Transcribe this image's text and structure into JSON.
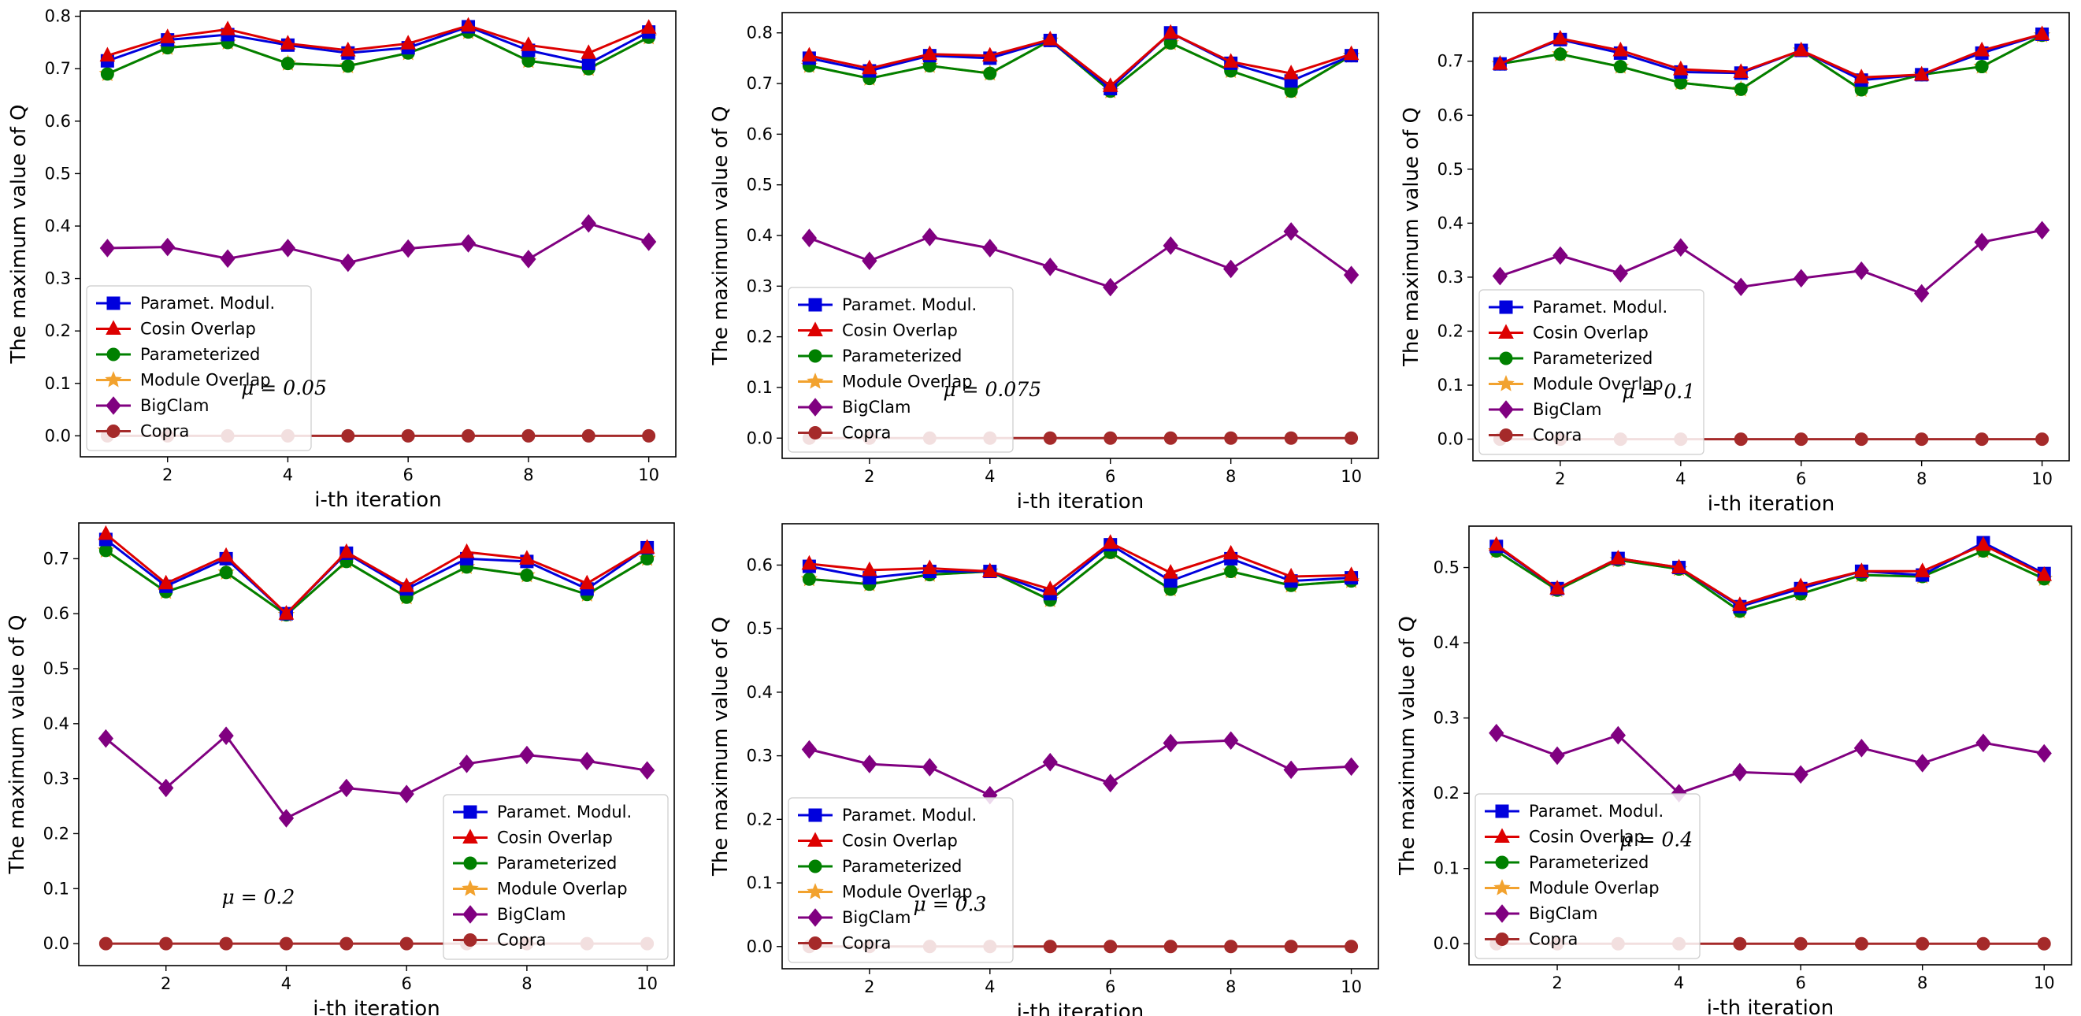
{
  "figure": {
    "legend_labels": [
      "Paramet. Modul.",
      "Cosin Overlap",
      "Parameterized",
      "Module Overlap",
      "BigClam",
      "Copra"
    ],
    "series_style": [
      {
        "name": "Paramet. Modul.",
        "color": "#0000dd",
        "marker": "square"
      },
      {
        "name": "Cosin Overlap",
        "color": "#dd0000",
        "marker": "triangle"
      },
      {
        "name": "Parameterized",
        "color": "#008000",
        "marker": "circle"
      },
      {
        "name": "Module Overlap",
        "color": "#f2a22e",
        "marker": "star"
      },
      {
        "name": "BigClam",
        "color": "#800080",
        "marker": "diamond"
      },
      {
        "name": "Copra",
        "color": "#a52a2a",
        "marker": "circle"
      }
    ]
  },
  "chart_data": [
    {
      "type": "line",
      "annotation": "μ = 0.05",
      "xlabel": "i-th iteration",
      "ylabel": "The maximum value of Q",
      "xlim": [
        0.55,
        10.45
      ],
      "ylim": [
        -0.04,
        0.81
      ],
      "xticks": [
        2,
        4,
        6,
        8,
        10
      ],
      "xtick_labels": [
        "2",
        "4",
        "6",
        "8",
        "10"
      ],
      "yticks": [
        0.0,
        0.1,
        0.2,
        0.3,
        0.4,
        0.5,
        0.6,
        0.7,
        0.8
      ],
      "ytick_labels": [
        "0.0",
        "0.1",
        "0.2",
        "0.3",
        "0.4",
        "0.5",
        "0.6",
        "0.7",
        "0.8"
      ],
      "legend_position": "lower-left",
      "x": [
        1,
        2,
        3,
        4,
        5,
        6,
        7,
        8,
        9,
        10
      ],
      "series": [
        {
          "name": "Paramet. Modul.",
          "values": [
            0.715,
            0.755,
            0.765,
            0.745,
            0.73,
            0.74,
            0.78,
            0.735,
            0.71,
            0.77
          ]
        },
        {
          "name": "Cosin Overlap",
          "values": [
            0.725,
            0.76,
            0.775,
            0.748,
            0.735,
            0.748,
            0.782,
            0.745,
            0.73,
            0.778
          ]
        },
        {
          "name": "Parameterized",
          "values": [
            0.69,
            0.74,
            0.75,
            0.71,
            0.705,
            0.73,
            0.77,
            0.715,
            0.7,
            0.76
          ]
        },
        {
          "name": "Module Overlap",
          "values": [
            0.69,
            0.74,
            0.75,
            0.71,
            0.705,
            0.73,
            0.77,
            0.715,
            0.7,
            0.76
          ]
        },
        {
          "name": "BigClam",
          "values": [
            0.358,
            0.36,
            0.338,
            0.358,
            0.33,
            0.357,
            0.367,
            0.337,
            0.405,
            0.37
          ]
        },
        {
          "name": "Copra",
          "values": [
            0,
            0,
            0,
            0,
            0,
            0,
            0,
            0,
            0,
            0
          ]
        }
      ]
    },
    {
      "type": "line",
      "annotation": "μ = 0.075",
      "xlabel": "i-th iteration",
      "ylabel": "The maximum value of Q",
      "xlim": [
        0.55,
        10.45
      ],
      "ylim": [
        -0.04,
        0.84
      ],
      "xticks": [
        2,
        4,
        6,
        8,
        10
      ],
      "xtick_labels": [
        "2",
        "4",
        "6",
        "8",
        "10"
      ],
      "yticks": [
        0.0,
        0.1,
        0.2,
        0.3,
        0.4,
        0.5,
        0.6,
        0.7,
        0.8
      ],
      "ytick_labels": [
        "0.0",
        "0.1",
        "0.2",
        "0.3",
        "0.4",
        "0.5",
        "0.6",
        "0.7",
        "0.8"
      ],
      "legend_position": "lower-left",
      "x": [
        1,
        2,
        3,
        4,
        5,
        6,
        7,
        8,
        9,
        10
      ],
      "series": [
        {
          "name": "Paramet. Modul.",
          "values": [
            0.75,
            0.725,
            0.755,
            0.75,
            0.785,
            0.69,
            0.8,
            0.74,
            0.705,
            0.755
          ]
        },
        {
          "name": "Cosin Overlap",
          "values": [
            0.755,
            0.73,
            0.758,
            0.755,
            0.787,
            0.695,
            0.8,
            0.743,
            0.72,
            0.758
          ]
        },
        {
          "name": "Parameterized",
          "values": [
            0.735,
            0.71,
            0.735,
            0.72,
            0.785,
            0.685,
            0.78,
            0.725,
            0.685,
            0.755
          ]
        },
        {
          "name": "Module Overlap",
          "values": [
            0.735,
            0.71,
            0.735,
            0.72,
            0.785,
            0.685,
            0.78,
            0.725,
            0.685,
            0.755
          ]
        },
        {
          "name": "BigClam",
          "values": [
            0.395,
            0.35,
            0.397,
            0.375,
            0.338,
            0.298,
            0.38,
            0.334,
            0.408,
            0.322
          ]
        },
        {
          "name": "Copra",
          "values": [
            0,
            0,
            0,
            0,
            0,
            0,
            0,
            0,
            0,
            0
          ]
        }
      ]
    },
    {
      "type": "line",
      "annotation": "μ = 0.1",
      "xlabel": "i-th iteration",
      "ylabel": "The maximum value of Q",
      "xlim": [
        0.55,
        10.45
      ],
      "ylim": [
        -0.04,
        0.79
      ],
      "xticks": [
        2,
        4,
        6,
        8,
        10
      ],
      "xtick_labels": [
        "2",
        "4",
        "6",
        "8",
        "10"
      ],
      "yticks": [
        0.0,
        0.1,
        0.2,
        0.3,
        0.4,
        0.5,
        0.6,
        0.7
      ],
      "ytick_labels": [
        "0.0",
        "0.1",
        "0.2",
        "0.3",
        "0.4",
        "0.5",
        "0.6",
        "0.7"
      ],
      "legend_position": "lower-left",
      "x": [
        1,
        2,
        3,
        4,
        5,
        6,
        7,
        8,
        9,
        10
      ],
      "series": [
        {
          "name": "Paramet. Modul.",
          "values": [
            0.695,
            0.74,
            0.715,
            0.68,
            0.678,
            0.72,
            0.665,
            0.675,
            0.715,
            0.75
          ]
        },
        {
          "name": "Cosin Overlap",
          "values": [
            0.695,
            0.742,
            0.72,
            0.685,
            0.68,
            0.72,
            0.67,
            0.675,
            0.72,
            0.75
          ]
        },
        {
          "name": "Parameterized",
          "values": [
            0.695,
            0.713,
            0.69,
            0.66,
            0.648,
            0.72,
            0.647,
            0.675,
            0.69,
            0.748
          ]
        },
        {
          "name": "Module Overlap",
          "values": [
            0.695,
            0.713,
            0.69,
            0.66,
            0.648,
            0.72,
            0.647,
            0.675,
            0.69,
            0.748
          ]
        },
        {
          "name": "BigClam",
          "values": [
            0.302,
            0.34,
            0.307,
            0.355,
            0.282,
            0.298,
            0.312,
            0.27,
            0.365,
            0.387
          ]
        },
        {
          "name": "Copra",
          "values": [
            0,
            0,
            0,
            0,
            0,
            0,
            0,
            0,
            0,
            0
          ]
        }
      ]
    },
    {
      "type": "line",
      "annotation": "μ = 0.2",
      "xlabel": "i-th iteration",
      "ylabel": "The maximum value of Q",
      "xlim": [
        0.55,
        10.45
      ],
      "ylim": [
        -0.04,
        0.765
      ],
      "xticks": [
        2,
        4,
        6,
        8,
        10
      ],
      "xtick_labels": [
        "2",
        "4",
        "6",
        "8",
        "10"
      ],
      "yticks": [
        0.0,
        0.1,
        0.2,
        0.3,
        0.4,
        0.5,
        0.6,
        0.7
      ],
      "ytick_labels": [
        "0.0",
        "0.1",
        "0.2",
        "0.3",
        "0.4",
        "0.5",
        "0.6",
        "0.7"
      ],
      "legend_position": "lower-right",
      "x": [
        1,
        2,
        3,
        4,
        5,
        6,
        7,
        8,
        9,
        10
      ],
      "series": [
        {
          "name": "Paramet. Modul.",
          "values": [
            0.735,
            0.65,
            0.7,
            0.6,
            0.71,
            0.645,
            0.7,
            0.695,
            0.645,
            0.72
          ]
        },
        {
          "name": "Cosin Overlap",
          "values": [
            0.745,
            0.655,
            0.705,
            0.6,
            0.712,
            0.65,
            0.712,
            0.7,
            0.655,
            0.72
          ]
        },
        {
          "name": "Parameterized",
          "values": [
            0.715,
            0.64,
            0.675,
            0.598,
            0.695,
            0.63,
            0.685,
            0.67,
            0.635,
            0.7
          ]
        },
        {
          "name": "Module Overlap",
          "values": [
            0.715,
            0.64,
            0.675,
            0.598,
            0.695,
            0.63,
            0.685,
            0.67,
            0.635,
            0.7
          ]
        },
        {
          "name": "BigClam",
          "values": [
            0.373,
            0.283,
            0.378,
            0.228,
            0.283,
            0.272,
            0.327,
            0.343,
            0.332,
            0.315
          ]
        },
        {
          "name": "Copra",
          "values": [
            0,
            0,
            0,
            0,
            0,
            0,
            0,
            0,
            0,
            0
          ]
        }
      ]
    },
    {
      "type": "line",
      "annotation": "μ = 0.3",
      "xlabel": "i-th iteration",
      "ylabel": "The maximum value of Q",
      "xlim": [
        0.55,
        10.45
      ],
      "ylim": [
        -0.035,
        0.665
      ],
      "xticks": [
        2,
        4,
        6,
        8,
        10
      ],
      "xtick_labels": [
        "2",
        "4",
        "6",
        "8",
        "10"
      ],
      "yticks": [
        0.0,
        0.1,
        0.2,
        0.3,
        0.4,
        0.5,
        0.6
      ],
      "ytick_labels": [
        "0.0",
        "0.1",
        "0.2",
        "0.3",
        "0.4",
        "0.5",
        "0.6"
      ],
      "legend_position": "lower-left",
      "x": [
        1,
        2,
        3,
        4,
        5,
        6,
        7,
        8,
        9,
        10
      ],
      "series": [
        {
          "name": "Paramet. Modul.",
          "values": [
            0.598,
            0.58,
            0.59,
            0.59,
            0.555,
            0.632,
            0.575,
            0.61,
            0.575,
            0.58
          ]
        },
        {
          "name": "Cosin Overlap",
          "values": [
            0.602,
            0.592,
            0.595,
            0.59,
            0.562,
            0.635,
            0.588,
            0.618,
            0.582,
            0.584
          ]
        },
        {
          "name": "Parameterized",
          "values": [
            0.578,
            0.57,
            0.585,
            0.59,
            0.545,
            0.62,
            0.562,
            0.59,
            0.568,
            0.575
          ]
        },
        {
          "name": "Module Overlap",
          "values": [
            0.578,
            0.57,
            0.585,
            0.59,
            0.545,
            0.62,
            0.562,
            0.59,
            0.568,
            0.575
          ]
        },
        {
          "name": "BigClam",
          "values": [
            0.31,
            0.287,
            0.282,
            0.238,
            0.29,
            0.257,
            0.32,
            0.324,
            0.278,
            0.283
          ]
        },
        {
          "name": "Copra",
          "values": [
            0,
            0,
            0,
            0,
            0,
            0,
            0,
            0,
            0,
            0
          ]
        }
      ]
    },
    {
      "type": "line",
      "annotation": "μ = 0.4",
      "xlabel": "i-th iteration",
      "ylabel": "The maximum value of Q",
      "xlim": [
        0.55,
        10.45
      ],
      "ylim": [
        -0.028,
        0.555
      ],
      "xticks": [
        2,
        4,
        6,
        8,
        10
      ],
      "xtick_labels": [
        "2",
        "4",
        "6",
        "8",
        "10"
      ],
      "yticks": [
        0.0,
        0.1,
        0.2,
        0.3,
        0.4,
        0.5
      ],
      "ytick_labels": [
        "0.0",
        "0.1",
        "0.2",
        "0.3",
        "0.4",
        "0.5"
      ],
      "legend_position": "lower-left",
      "x": [
        1,
        2,
        3,
        4,
        5,
        6,
        7,
        8,
        9,
        10
      ],
      "series": [
        {
          "name": "Paramet. Modul.",
          "values": [
            0.528,
            0.472,
            0.512,
            0.5,
            0.448,
            0.472,
            0.495,
            0.49,
            0.533,
            0.492
          ]
        },
        {
          "name": "Cosin Overlap",
          "values": [
            0.53,
            0.472,
            0.512,
            0.5,
            0.45,
            0.475,
            0.495,
            0.495,
            0.53,
            0.49
          ]
        },
        {
          "name": "Parameterized",
          "values": [
            0.522,
            0.47,
            0.51,
            0.498,
            0.442,
            0.465,
            0.49,
            0.488,
            0.522,
            0.485
          ]
        },
        {
          "name": "Module Overlap",
          "values": [
            0.522,
            0.47,
            0.51,
            0.498,
            0.442,
            0.465,
            0.49,
            0.488,
            0.522,
            0.485
          ]
        },
        {
          "name": "BigClam",
          "values": [
            0.28,
            0.25,
            0.277,
            0.2,
            0.228,
            0.225,
            0.26,
            0.24,
            0.267,
            0.253
          ]
        },
        {
          "name": "Copra",
          "values": [
            0,
            0,
            0,
            0,
            0,
            0,
            0,
            0,
            0,
            0
          ]
        }
      ]
    }
  ]
}
